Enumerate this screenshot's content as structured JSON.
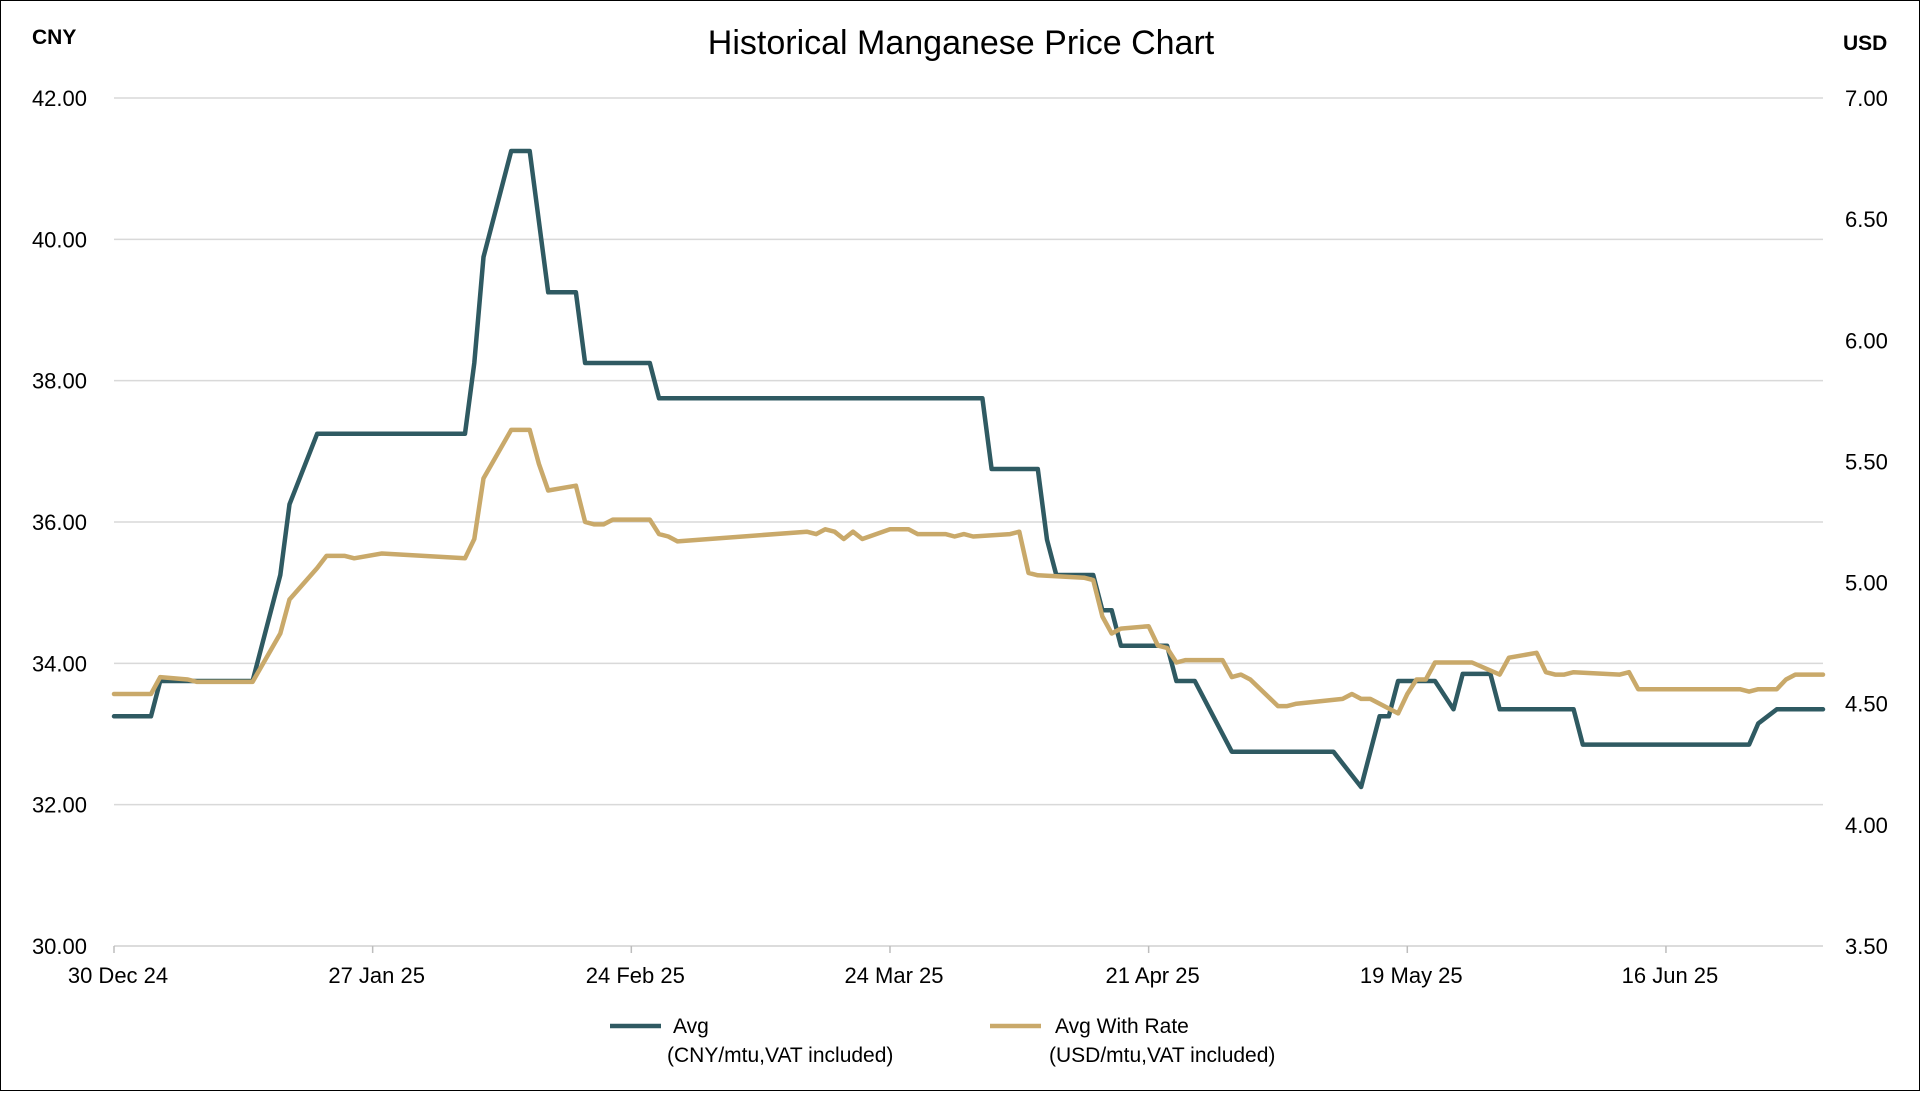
{
  "chart_data": {
    "type": "line",
    "title": "Historical Manganese Price Chart",
    "left_axis_label": "CNY",
    "right_axis_label": "USD",
    "x_tick_labels": [
      "30 Dec 24",
      "27 Jan 25",
      "24 Feb 25",
      "24 Mar 25",
      "21 Apr 25",
      "19 May 25",
      "16 Jun 25"
    ],
    "x_tick_dates": [
      "2024-12-30",
      "2025-01-27",
      "2025-02-24",
      "2025-03-24",
      "2025-04-21",
      "2025-05-19",
      "2025-06-16"
    ],
    "x_range": [
      "2024-12-30",
      "2025-07-03"
    ],
    "left_ylim": [
      30,
      42
    ],
    "left_ticks": [
      "30.00",
      "32.00",
      "34.00",
      "36.00",
      "38.00",
      "40.00",
      "42.00"
    ],
    "right_ylim": [
      3.5,
      7.0
    ],
    "right_ticks": [
      "3.50",
      "4.00",
      "4.50",
      "5.00",
      "5.50",
      "6.00",
      "6.50",
      "7.00"
    ],
    "grid": true,
    "legend_position": "bottom",
    "series": [
      {
        "name": "Avg",
        "unit": "(CNY/mtu,VAT included)",
        "axis": "left",
        "color": "#2f5a62",
        "points": [
          [
            "2024-12-30",
            33.25
          ],
          [
            "2025-01-03",
            33.25
          ],
          [
            "2025-01-04",
            33.75
          ],
          [
            "2025-01-14",
            33.75
          ],
          [
            "2025-01-17",
            35.25
          ],
          [
            "2025-01-18",
            36.25
          ],
          [
            "2025-01-21",
            37.25
          ],
          [
            "2025-02-06",
            37.25
          ],
          [
            "2025-02-07",
            38.25
          ],
          [
            "2025-02-08",
            39.75
          ],
          [
            "2025-02-11",
            41.25
          ],
          [
            "2025-02-13",
            41.25
          ],
          [
            "2025-02-15",
            39.25
          ],
          [
            "2025-02-18",
            39.25
          ],
          [
            "2025-02-19",
            38.25
          ],
          [
            "2025-02-26",
            38.25
          ],
          [
            "2025-02-27",
            37.75
          ],
          [
            "2025-04-03",
            37.75
          ],
          [
            "2025-04-04",
            36.75
          ],
          [
            "2025-04-09",
            36.75
          ],
          [
            "2025-04-10",
            35.75
          ],
          [
            "2025-04-11",
            35.25
          ],
          [
            "2025-04-15",
            35.25
          ],
          [
            "2025-04-16",
            34.75
          ],
          [
            "2025-04-17",
            34.75
          ],
          [
            "2025-04-18",
            34.25
          ],
          [
            "2025-04-23",
            34.25
          ],
          [
            "2025-04-24",
            33.75
          ],
          [
            "2025-04-26",
            33.75
          ],
          [
            "2025-04-30",
            32.75
          ],
          [
            "2025-05-11",
            32.75
          ],
          [
            "2025-05-14",
            32.25
          ],
          [
            "2025-05-16",
            33.25
          ],
          [
            "2025-05-17",
            33.25
          ],
          [
            "2025-05-18",
            33.75
          ],
          [
            "2025-05-22",
            33.75
          ],
          [
            "2025-05-24",
            33.35
          ],
          [
            "2025-05-25",
            33.85
          ],
          [
            "2025-05-28",
            33.85
          ],
          [
            "2025-05-29",
            33.35
          ],
          [
            "2025-06-06",
            33.35
          ],
          [
            "2025-06-07",
            32.85
          ],
          [
            "2025-06-25",
            32.85
          ],
          [
            "2025-06-26",
            33.15
          ],
          [
            "2025-06-28",
            33.35
          ],
          [
            "2025-07-03",
            33.35
          ]
        ]
      },
      {
        "name": "Avg With Rate",
        "unit": "(USD/mtu,VAT included)",
        "axis": "right",
        "color": "#c9a96a",
        "points": [
          [
            "2024-12-30",
            4.54
          ],
          [
            "2025-01-03",
            4.54
          ],
          [
            "2025-01-04",
            4.61
          ],
          [
            "2025-01-07",
            4.6
          ],
          [
            "2025-01-08",
            4.59
          ],
          [
            "2025-01-14",
            4.59
          ],
          [
            "2025-01-17",
            4.79
          ],
          [
            "2025-01-18",
            4.93
          ],
          [
            "2025-01-21",
            5.06
          ],
          [
            "2025-01-22",
            5.11
          ],
          [
            "2025-01-24",
            5.11
          ],
          [
            "2025-01-25",
            5.1
          ],
          [
            "2025-01-28",
            5.12
          ],
          [
            "2025-02-06",
            5.1
          ],
          [
            "2025-02-07",
            5.18
          ],
          [
            "2025-02-08",
            5.43
          ],
          [
            "2025-02-11",
            5.63
          ],
          [
            "2025-02-13",
            5.63
          ],
          [
            "2025-02-14",
            5.49
          ],
          [
            "2025-02-15",
            5.38
          ],
          [
            "2025-02-18",
            5.4
          ],
          [
            "2025-02-19",
            5.25
          ],
          [
            "2025-02-20",
            5.24
          ],
          [
            "2025-02-21",
            5.24
          ],
          [
            "2025-02-22",
            5.26
          ],
          [
            "2025-02-26",
            5.26
          ],
          [
            "2025-02-27",
            5.2
          ],
          [
            "2025-02-28",
            5.19
          ],
          [
            "2025-03-01",
            5.17
          ],
          [
            "2025-03-15",
            5.21
          ],
          [
            "2025-03-16",
            5.2
          ],
          [
            "2025-03-17",
            5.22
          ],
          [
            "2025-03-18",
            5.21
          ],
          [
            "2025-03-19",
            5.18
          ],
          [
            "2025-03-20",
            5.21
          ],
          [
            "2025-03-21",
            5.18
          ],
          [
            "2025-03-24",
            5.22
          ],
          [
            "2025-03-26",
            5.22
          ],
          [
            "2025-03-27",
            5.2
          ],
          [
            "2025-03-30",
            5.2
          ],
          [
            "2025-03-31",
            5.19
          ],
          [
            "2025-04-01",
            5.2
          ],
          [
            "2025-04-02",
            5.19
          ],
          [
            "2025-04-06",
            5.2
          ],
          [
            "2025-04-07",
            5.21
          ],
          [
            "2025-04-08",
            5.04
          ],
          [
            "2025-04-09",
            5.03
          ],
          [
            "2025-04-14",
            5.02
          ],
          [
            "2025-04-15",
            5.01
          ],
          [
            "2025-04-16",
            4.86
          ],
          [
            "2025-04-17",
            4.79
          ],
          [
            "2025-04-18",
            4.81
          ],
          [
            "2025-04-21",
            4.82
          ],
          [
            "2025-04-22",
            4.74
          ],
          [
            "2025-04-23",
            4.73
          ],
          [
            "2025-04-24",
            4.67
          ],
          [
            "2025-04-25",
            4.68
          ],
          [
            "2025-04-29",
            4.68
          ],
          [
            "2025-04-30",
            4.61
          ],
          [
            "2025-05-01",
            4.62
          ],
          [
            "2025-05-02",
            4.6
          ],
          [
            "2025-05-05",
            4.49
          ],
          [
            "2025-05-06",
            4.49
          ],
          [
            "2025-05-07",
            4.5
          ],
          [
            "2025-05-12",
            4.52
          ],
          [
            "2025-05-13",
            4.54
          ],
          [
            "2025-05-14",
            4.52
          ],
          [
            "2025-05-15",
            4.52
          ],
          [
            "2025-05-18",
            4.46
          ],
          [
            "2025-05-19",
            4.54
          ],
          [
            "2025-05-20",
            4.6
          ],
          [
            "2025-05-21",
            4.6
          ],
          [
            "2025-05-22",
            4.67
          ],
          [
            "2025-05-26",
            4.67
          ],
          [
            "2025-05-29",
            4.62
          ],
          [
            "2025-05-30",
            4.69
          ],
          [
            "2025-06-02",
            4.71
          ],
          [
            "2025-06-03",
            4.63
          ],
          [
            "2025-06-04",
            4.62
          ],
          [
            "2025-06-05",
            4.62
          ],
          [
            "2025-06-06",
            4.63
          ],
          [
            "2025-06-11",
            4.62
          ],
          [
            "2025-06-12",
            4.63
          ],
          [
            "2025-06-13",
            4.56
          ],
          [
            "2025-06-24",
            4.56
          ],
          [
            "2025-06-25",
            4.55
          ],
          [
            "2025-06-26",
            4.56
          ],
          [
            "2025-06-28",
            4.56
          ],
          [
            "2025-06-29",
            4.6
          ],
          [
            "2025-06-30",
            4.62
          ],
          [
            "2025-07-03",
            4.62
          ]
        ]
      }
    ]
  }
}
